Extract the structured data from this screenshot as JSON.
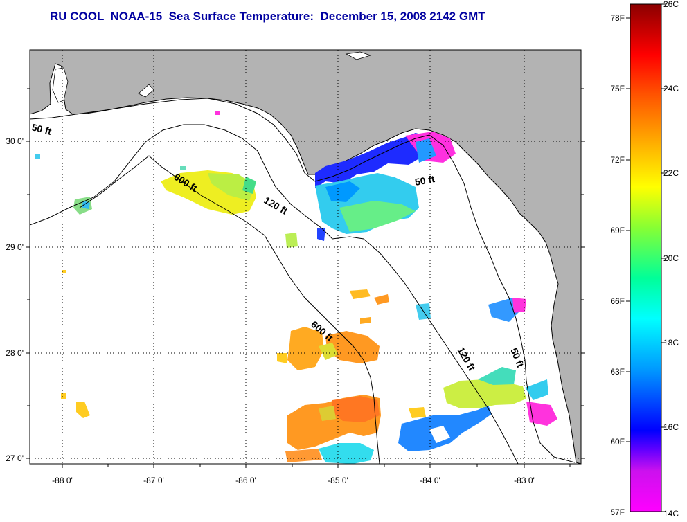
{
  "title": "RU COOL  NOAA-15  Sea Surface Temperature:  December 15, 2008 2142 GMT",
  "map": {
    "lon_ticks": [
      "-88 0'",
      "-87 0'",
      "-86 0'",
      "-85 0'",
      "-84 0'",
      "-83 0'"
    ],
    "lat_ticks": [
      "30 0'",
      "29 0'",
      "28 0'",
      "27 0'"
    ],
    "contour_labels": {
      "ft50_west": "50 ft",
      "ft50_east": "50 ft",
      "ft50_south": "50 ft",
      "ft120_north": "120 ft",
      "ft120_south": "120 ft",
      "ft600_west": "600 ft",
      "ft600_south": "600 ft"
    },
    "colors": {
      "land": "#b3b3b3",
      "sea": "#ffffff",
      "grid": "#000000"
    }
  },
  "colorbar": {
    "fahrenheit_labels": [
      "78F",
      "75F",
      "72F",
      "69F",
      "66F",
      "63F",
      "60F",
      "57F"
    ],
    "celsius_labels": [
      "26C",
      "24C",
      "22C",
      "20C",
      "18C",
      "16C",
      "14C"
    ],
    "colormap": [
      "#ff00ff",
      "#9933ff",
      "#0000ff",
      "#0088ff",
      "#00ffff",
      "#00ff99",
      "#88ff00",
      "#ffff00",
      "#ffaa00",
      "#ff5500",
      "#ff0000",
      "#8b0000"
    ]
  }
}
